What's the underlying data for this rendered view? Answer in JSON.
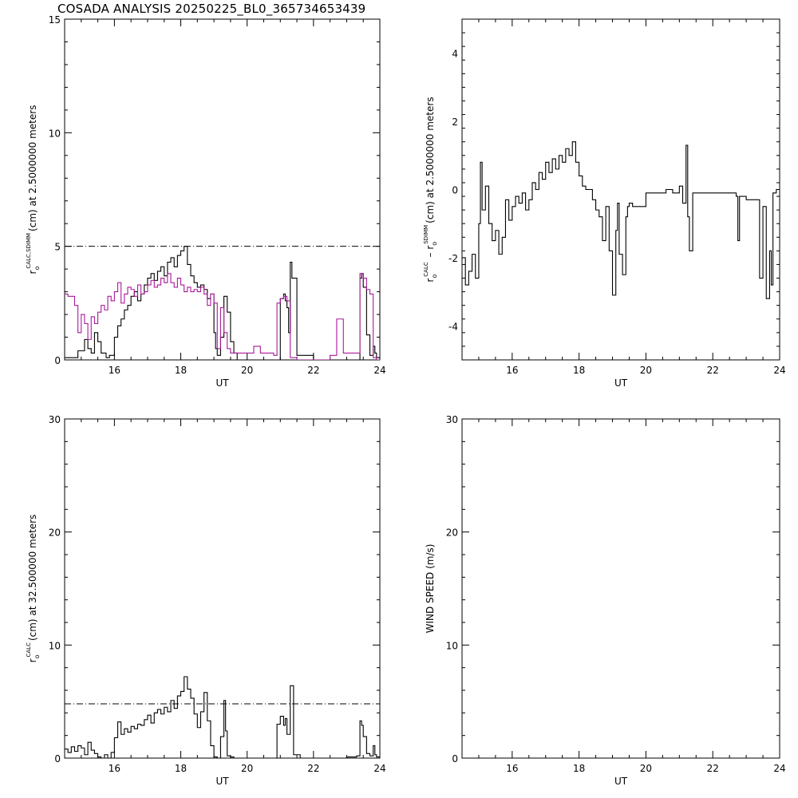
{
  "figure": {
    "title": "COSADA ANALYSIS 20250225_BL0_365734653439",
    "line_color": "#000000",
    "alt_color": "#aa1a9a"
  },
  "chart_data": [
    {
      "id": "p1",
      "type": "line",
      "xlabel": "UT",
      "ylabel_parts": [
        "r",
        "o",
        "CALC,SDIMM",
        "(cm)  at  2.5000000 meters"
      ],
      "xlim": [
        14.5,
        24
      ],
      "ylim": [
        0,
        15
      ],
      "xticks": [
        16,
        18,
        20,
        22,
        24
      ],
      "yticks": [
        0,
        5,
        10,
        15
      ],
      "reference_line": 5,
      "series": [
        {
          "color": "#000000",
          "x": [
            14.5,
            14.7,
            14.9,
            15.1,
            15.2,
            15.3,
            15.4,
            15.5,
            15.6,
            15.75,
            15.85,
            16.0,
            16.1,
            16.2,
            16.3,
            16.4,
            16.5,
            16.6,
            16.7,
            16.8,
            16.9,
            17.0,
            17.1,
            17.2,
            17.3,
            17.4,
            17.5,
            17.6,
            17.7,
            17.8,
            17.9,
            18.0,
            18.1,
            18.2,
            18.3,
            18.4,
            18.5,
            18.6,
            18.7,
            18.8,
            18.9,
            19.0,
            19.05,
            19.1,
            19.2,
            19.3,
            19.4,
            19.5,
            19.6,
            19.7,
            19.8,
            19.9,
            20.0,
            20.2,
            20.4,
            20.6,
            20.8,
            20.9,
            21.0,
            21.1,
            21.15,
            21.2,
            21.25,
            21.3,
            21.35,
            21.5,
            22.0,
            22.5,
            22.8,
            23.0,
            23.2,
            23.4,
            23.45,
            23.5,
            23.6,
            23.7,
            23.8,
            23.85,
            23.9,
            24.0
          ],
          "y": [
            0.1,
            0.1,
            0.4,
            0.9,
            0.5,
            0.3,
            1.2,
            0.8,
            0.3,
            0.1,
            0.2,
            1.0,
            1.5,
            1.8,
            2.2,
            2.4,
            2.8,
            3.0,
            2.6,
            2.9,
            3.3,
            3.6,
            3.8,
            3.5,
            3.9,
            4.1,
            3.7,
            4.3,
            4.5,
            4.1,
            4.6,
            4.8,
            5.0,
            4.2,
            3.7,
            3.4,
            3.2,
            3.3,
            3.1,
            2.7,
            2.9,
            1.2,
            0.5,
            0.2,
            1.0,
            2.8,
            2.1,
            0.8,
            0.3,
            0.0,
            0.0,
            0.0,
            0.0,
            0.0,
            0.0,
            0.0,
            0.0,
            0.0,
            2.7,
            2.9,
            2.6,
            2.3,
            1.2,
            4.3,
            3.6,
            0.2,
            0.0,
            0.0,
            0.0,
            0.0,
            0.0,
            3.6,
            3.8,
            3.2,
            1.1,
            0.2,
            0.6,
            0.3,
            0.1,
            0.1
          ]
        },
        {
          "color": "#aa1a9a",
          "x": [
            14.5,
            14.6,
            14.8,
            14.9,
            15.0,
            15.1,
            15.2,
            15.3,
            15.4,
            15.5,
            15.6,
            15.7,
            15.8,
            15.9,
            16.0,
            16.1,
            16.2,
            16.3,
            16.4,
            16.5,
            16.6,
            16.7,
            16.8,
            16.9,
            17.0,
            17.1,
            17.2,
            17.3,
            17.4,
            17.5,
            17.6,
            17.7,
            17.8,
            17.9,
            18.0,
            18.1,
            18.2,
            18.3,
            18.4,
            18.5,
            18.6,
            18.7,
            18.8,
            18.9,
            19.0,
            19.1,
            19.2,
            19.3,
            19.4,
            19.5,
            19.6,
            19.8,
            20.0,
            20.2,
            20.4,
            20.6,
            20.8,
            20.9,
            21.0,
            21.1,
            21.2,
            21.3,
            21.5,
            22.0,
            22.5,
            22.7,
            22.9,
            23.0,
            23.2,
            23.4,
            23.5,
            23.6,
            23.7,
            23.8,
            23.9,
            24.0
          ],
          "y": [
            2.9,
            2.8,
            2.4,
            1.2,
            2.0,
            1.6,
            0.9,
            1.9,
            1.6,
            2.1,
            2.4,
            2.2,
            2.8,
            2.6,
            3.0,
            3.4,
            2.5,
            2.9,
            3.2,
            3.1,
            2.8,
            3.3,
            2.9,
            3.0,
            3.3,
            3.5,
            3.2,
            3.3,
            3.6,
            3.4,
            3.8,
            3.4,
            3.2,
            3.6,
            3.3,
            3.0,
            3.2,
            3.0,
            3.1,
            3.0,
            3.2,
            2.9,
            2.4,
            2.9,
            2.5,
            0.5,
            2.3,
            1.2,
            0.5,
            0.3,
            0.3,
            0.3,
            0.3,
            0.6,
            0.3,
            0.3,
            0.2,
            2.5,
            2.7,
            2.8,
            2.6,
            0.1,
            0.0,
            0.0,
            0.2,
            1.8,
            0.3,
            0.3,
            0.3,
            3.8,
            3.6,
            3.1,
            2.9,
            0.1,
            0.0,
            0.0
          ]
        }
      ]
    },
    {
      "id": "p2",
      "type": "line",
      "xlabel": "UT",
      "ylabel_parts": [
        "r",
        "o",
        "CALC",
        " – r",
        "o",
        "SDIMM",
        "(cm) at 2.5000000 meters"
      ],
      "xlim": [
        14.5,
        24
      ],
      "ylim": [
        -5,
        5
      ],
      "xticks": [
        16,
        18,
        20,
        22,
        24
      ],
      "yticks": [
        -4,
        -2,
        0,
        2,
        4
      ],
      "series": [
        {
          "color": "#000000",
          "x": [
            14.5,
            14.6,
            14.7,
            14.8,
            14.9,
            15.0,
            15.05,
            15.1,
            15.2,
            15.3,
            15.4,
            15.5,
            15.6,
            15.7,
            15.8,
            15.9,
            16.0,
            16.1,
            16.2,
            16.3,
            16.4,
            16.5,
            16.6,
            16.7,
            16.8,
            16.9,
            17.0,
            17.1,
            17.2,
            17.3,
            17.4,
            17.5,
            17.6,
            17.7,
            17.8,
            17.9,
            18.0,
            18.1,
            18.2,
            18.3,
            18.4,
            18.5,
            18.6,
            18.7,
            18.8,
            18.9,
            19.0,
            19.1,
            19.15,
            19.2,
            19.3,
            19.4,
            19.45,
            19.5,
            19.6,
            19.8,
            20.0,
            20.2,
            20.4,
            20.6,
            20.8,
            21.0,
            21.1,
            21.2,
            21.25,
            21.3,
            21.4,
            21.6,
            22.0,
            22.4,
            22.7,
            22.75,
            22.8,
            23.0,
            23.2,
            23.4,
            23.5,
            23.6,
            23.7,
            23.75,
            23.8,
            23.9,
            24.0
          ],
          "y": [
            -2.0,
            -2.8,
            -2.4,
            -1.9,
            -2.6,
            -1.0,
            0.8,
            -0.6,
            0.1,
            -1.0,
            -1.5,
            -1.2,
            -1.9,
            -1.4,
            -0.3,
            -0.9,
            -0.5,
            -0.2,
            -0.4,
            -0.1,
            -0.6,
            -0.3,
            0.2,
            0.0,
            0.5,
            0.3,
            0.8,
            0.5,
            0.9,
            0.6,
            1.0,
            0.8,
            1.2,
            1.0,
            1.4,
            0.8,
            0.4,
            0.1,
            0.0,
            0.0,
            -0.3,
            -0.6,
            -0.8,
            -1.5,
            -0.5,
            -1.8,
            -3.1,
            -1.2,
            -0.4,
            -1.9,
            -2.5,
            -0.8,
            -0.5,
            -0.4,
            -0.5,
            -0.5,
            -0.1,
            -0.1,
            -0.1,
            0.0,
            -0.1,
            0.1,
            -0.4,
            1.3,
            -0.8,
            -1.8,
            -0.1,
            -0.1,
            -0.1,
            -0.1,
            -0.2,
            -1.5,
            -0.2,
            -0.3,
            -0.3,
            -2.6,
            -0.5,
            -3.2,
            -1.8,
            -2.8,
            -0.1,
            0.0,
            0.0
          ]
        }
      ]
    },
    {
      "id": "p3",
      "type": "line",
      "xlabel": "UT",
      "ylabel_parts": [
        "r",
        "o",
        "CALC",
        "(cm) at 32.500000 meters"
      ],
      "xlim": [
        14.5,
        24
      ],
      "ylim": [
        0,
        30
      ],
      "xticks": [
        16,
        18,
        20,
        22,
        24
      ],
      "yticks": [
        0,
        10,
        20,
        30
      ],
      "reference_line": 4.8,
      "series": [
        {
          "color": "#000000",
          "x": [
            14.5,
            14.6,
            14.7,
            14.8,
            14.9,
            15.0,
            15.1,
            15.2,
            15.3,
            15.4,
            15.5,
            15.6,
            15.7,
            15.8,
            15.9,
            16.0,
            16.1,
            16.2,
            16.3,
            16.4,
            16.5,
            16.6,
            16.7,
            16.8,
            16.9,
            17.0,
            17.1,
            17.2,
            17.3,
            17.4,
            17.5,
            17.6,
            17.7,
            17.8,
            17.9,
            18.0,
            18.1,
            18.2,
            18.3,
            18.4,
            18.5,
            18.6,
            18.7,
            18.8,
            18.9,
            19.0,
            19.1,
            19.2,
            19.3,
            19.35,
            19.4,
            19.5,
            19.6,
            19.8,
            20.0,
            20.5,
            20.8,
            20.9,
            21.0,
            21.1,
            21.15,
            21.2,
            21.3,
            21.4,
            21.6,
            22.0,
            22.5,
            23.0,
            23.3,
            23.4,
            23.45,
            23.5,
            23.6,
            23.7,
            23.8,
            23.85,
            23.9,
            24.0
          ],
          "y": [
            0.8,
            0.5,
            1.0,
            0.6,
            1.1,
            0.9,
            0.3,
            1.4,
            0.7,
            0.4,
            0.1,
            0.0,
            0.3,
            0.0,
            0.5,
            1.8,
            3.2,
            2.1,
            2.6,
            2.3,
            2.8,
            2.6,
            3.0,
            2.9,
            3.4,
            3.8,
            3.1,
            4.0,
            4.3,
            3.9,
            4.5,
            4.1,
            5.1,
            4.4,
            5.5,
            5.9,
            7.2,
            6.1,
            5.3,
            3.9,
            2.7,
            4.1,
            5.8,
            3.3,
            1.1,
            0.1,
            0.0,
            1.9,
            5.1,
            2.4,
            0.2,
            0.1,
            0.0,
            0.0,
            0.0,
            0.0,
            0.0,
            3.0,
            3.7,
            2.9,
            3.5,
            2.1,
            6.4,
            0.3,
            0.0,
            0.0,
            0.0,
            0.1,
            0.2,
            3.3,
            2.9,
            1.9,
            0.4,
            0.2,
            1.1,
            0.3,
            0.1,
            0.0
          ]
        }
      ]
    },
    {
      "id": "p4",
      "type": "line",
      "xlabel": "UT",
      "ylabel_parts": [
        "",
        "",
        "",
        "WIND SPEED (m/s)"
      ],
      "xlim": [
        14.5,
        24
      ],
      "ylim": [
        0,
        30
      ],
      "xticks": [
        16,
        18,
        20,
        22,
        24
      ],
      "yticks": [
        0,
        10,
        20,
        30
      ],
      "series": []
    }
  ]
}
